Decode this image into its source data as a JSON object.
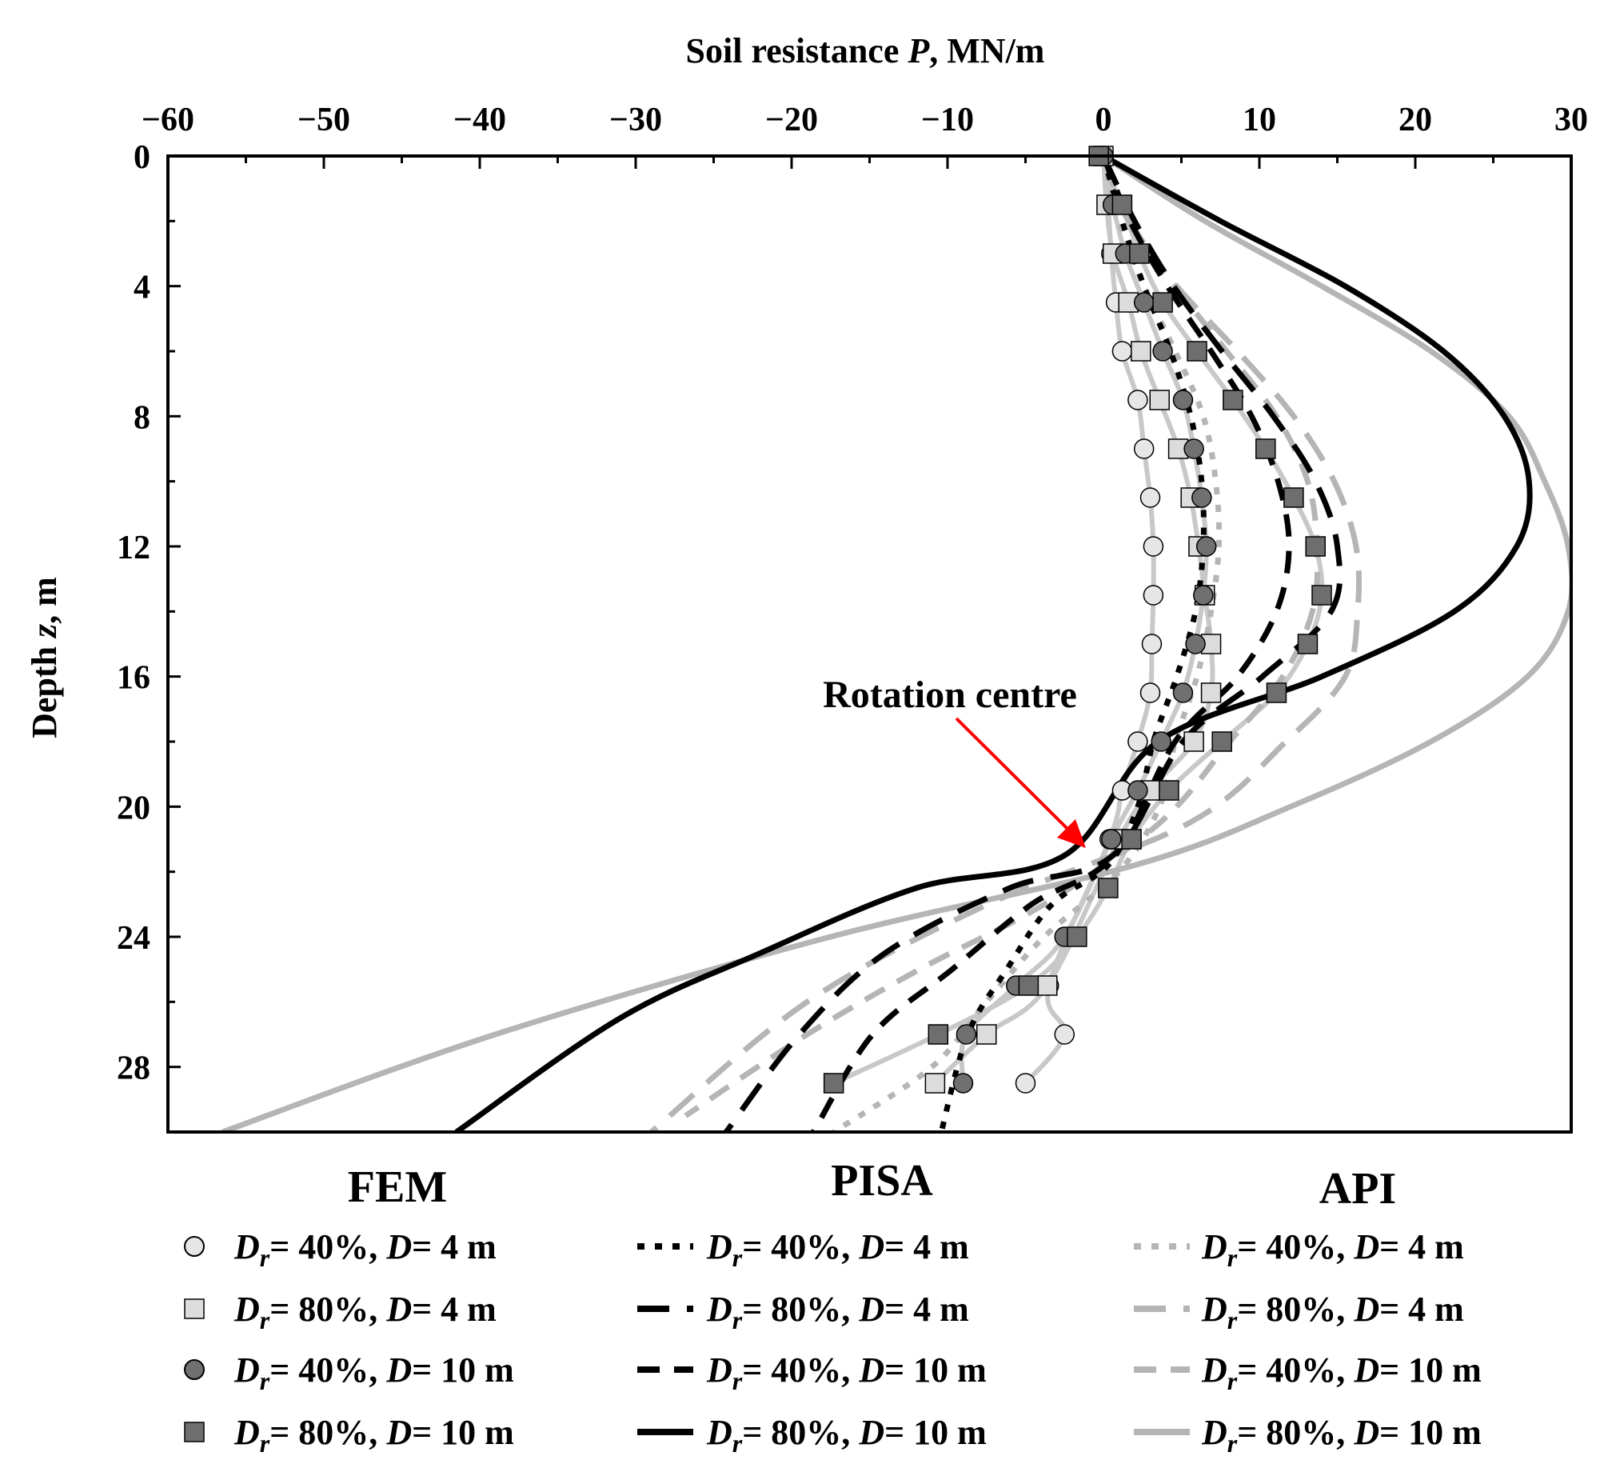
{
  "chart_data": {
    "type": "line",
    "title": "Soil resistance P, MN/m",
    "xlabel": "Soil resistance P, MN/m",
    "xlabel_parts": {
      "pre": "Soil resistance ",
      "var": "P",
      "post": ", MN/m"
    },
    "ylabel": "Depth z, m",
    "ylabel_parts": {
      "pre": "Depth ",
      "var": "z",
      "post": ", m"
    },
    "xlim": [
      -60,
      30
    ],
    "ylim": [
      0,
      30
    ],
    "y_inverted": true,
    "x_axis_position": "top",
    "xticks": [
      -60,
      -50,
      -40,
      -30,
      -20,
      -10,
      0,
      10,
      20,
      30
    ],
    "xtick_labels": [
      "−60",
      "−50",
      "−40",
      "−30",
      "−20",
      "−10",
      "0",
      "10",
      "20",
      "30"
    ],
    "yticks": [
      0,
      4,
      8,
      12,
      16,
      20,
      24,
      28
    ],
    "ytick_labels": [
      "0",
      "4",
      "8",
      "12",
      "16",
      "20",
      "24",
      "28"
    ],
    "annotation": {
      "text": "Rotation centre",
      "points_to": {
        "x": -1,
        "z": 21.2
      }
    },
    "groups": [
      "FEM",
      "PISA",
      "API"
    ],
    "fem_series": [
      {
        "name": "FEM Dr=40%, D=4 m",
        "marker": "circle",
        "fill": "#e6e6e6",
        "x": [
          0,
          0.3,
          0.5,
          0.8,
          1.2,
          2.2,
          2.6,
          3.0,
          3.2,
          3.2,
          3.1,
          3.0,
          2.2,
          1.2,
          0.4,
          -3.5,
          -2.5,
          -5.0
        ],
        "z": [
          0,
          1.5,
          3.0,
          4.5,
          6.0,
          7.5,
          9.0,
          10.5,
          12.0,
          13.5,
          15.0,
          16.5,
          18.0,
          19.5,
          21.0,
          25.5,
          27.0,
          28.5
        ]
      },
      {
        "name": "FEM Dr=80%, D=4 m",
        "marker": "square",
        "fill": "#dcdcdc",
        "x": [
          0,
          0.2,
          0.6,
          1.6,
          2.4,
          3.6,
          4.8,
          5.6,
          6.1,
          6.5,
          6.9,
          6.9,
          5.8,
          3.0,
          1.0,
          -3.6,
          -7.5,
          -10.8
        ],
        "z": [
          0,
          1.5,
          3.0,
          4.5,
          6.0,
          7.5,
          9.0,
          10.5,
          12.0,
          13.5,
          15.0,
          16.5,
          18.0,
          19.5,
          21.0,
          25.5,
          27.0,
          28.5
        ]
      },
      {
        "name": "FEM Dr=40%, D=10 m",
        "marker": "circle",
        "fill": "#707070",
        "x": [
          0,
          0.6,
          1.4,
          2.6,
          3.8,
          5.1,
          5.8,
          6.3,
          6.6,
          6.4,
          5.9,
          5.1,
          3.7,
          2.2,
          0.5,
          -2.5,
          -5.6,
          -8.8,
          -9.0
        ],
        "z": [
          0,
          1.5,
          3.0,
          4.5,
          6.0,
          7.5,
          9.0,
          10.5,
          12.0,
          13.5,
          15.0,
          16.5,
          18.0,
          19.5,
          21.0,
          24.0,
          25.5,
          27.0,
          28.5
        ]
      },
      {
        "name": "FEM Dr=80%, D=10 m",
        "marker": "square",
        "fill": "#6e6e6e",
        "x": [
          -0.3,
          1.2,
          2.3,
          3.8,
          6.0,
          8.3,
          10.4,
          12.2,
          13.6,
          14.0,
          13.1,
          11.1,
          7.6,
          4.2,
          1.8,
          0.3,
          -1.7,
          -4.8,
          -10.6,
          -17.3
        ],
        "z": [
          0,
          1.5,
          3.0,
          4.5,
          6.0,
          7.5,
          9.0,
          10.5,
          12.0,
          13.5,
          15.0,
          16.5,
          18.0,
          19.5,
          21.0,
          22.5,
          24.0,
          25.5,
          27.0,
          28.5
        ]
      }
    ],
    "pisa_series": [
      {
        "name": "PISA Dr=40%, D=4 m",
        "color": "#000000",
        "dash": "9 13",
        "x": [
          0,
          1.2,
          2.6,
          4.3,
          5.6,
          6.3,
          6.4,
          5.9,
          4.7,
          3.2,
          2.2,
          0.3,
          -3.3,
          -6.2,
          -8.7,
          -10.4
        ],
        "z": [
          0,
          2,
          4,
          6,
          8,
          10,
          12,
          14,
          16,
          18,
          20,
          21.8,
          23,
          25,
          27,
          30
        ]
      },
      {
        "name": "PISA Dr=80%, D=4 m",
        "color": "#000000",
        "dash": "40 22",
        "x": [
          0,
          2.0,
          4.5,
          7.6,
          10.9,
          13.6,
          15.0,
          14.6,
          10.2,
          5.1,
          0.6,
          -6.0,
          -14.0,
          -19.5,
          -24.2
        ],
        "z": [
          0,
          2,
          4,
          6,
          8,
          10,
          12,
          14,
          16,
          18,
          21.5,
          22.5,
          24.5,
          27,
          30
        ]
      },
      {
        "name": "PISA Dr=40%, D=10 m",
        "color": "#000000",
        "dash": "28 18",
        "x": [
          0,
          1.7,
          4.1,
          6.9,
          9.5,
          11.2,
          11.9,
          11.1,
          8.6,
          4.6,
          0.7,
          -4.6,
          -9.7,
          -14.8,
          -18.6
        ],
        "z": [
          0,
          2,
          4,
          6,
          8,
          10,
          12,
          14,
          16,
          18,
          21.5,
          23,
          25,
          27,
          30
        ]
      },
      {
        "name": "PISA Dr=80%, D=10 m",
        "color": "#000000",
        "dash": "",
        "x": [
          0,
          7.5,
          15.5,
          21.8,
          25.7,
          27.3,
          26.5,
          22.5,
          14.0,
          3.5,
          -2.5,
          -12.0,
          -22.0,
          -31.0,
          -41.5
        ],
        "z": [
          0,
          2,
          4,
          6,
          8,
          10,
          12,
          14,
          16,
          18,
          21.5,
          22.5,
          24.5,
          26.5,
          30
        ]
      }
    ],
    "api_series": [
      {
        "name": "API Dr=40%, D=4 m",
        "color": "#b5b5b5",
        "dash": "9 13",
        "x": [
          0,
          1.0,
          2.6,
          4.6,
          6.4,
          7.2,
          7.4,
          6.9,
          6.0,
          4.6,
          3.6,
          1.0,
          -3.8,
          -7.5,
          -11.0,
          -17.3
        ],
        "z": [
          0,
          2,
          4,
          6,
          8,
          10,
          12,
          14,
          16,
          18,
          20,
          22,
          24,
          26,
          28,
          30
        ]
      },
      {
        "name": "API Dr=80%, D=4 m",
        "color": "#b5b5b5",
        "dash": "40 22",
        "x": [
          0,
          1.6,
          4.7,
          8.6,
          12.2,
          14.8,
          16.2,
          16.3,
          15.5,
          11.7,
          5.5,
          -7.4,
          -19.0,
          -29.0
        ],
        "z": [
          0,
          2,
          4,
          6,
          8,
          10,
          12,
          14,
          16,
          18,
          20.5,
          23,
          26,
          30
        ]
      },
      {
        "name": "API Dr=40%, D=10 m",
        "color": "#b5b5b5",
        "dash": "28 18",
        "x": [
          0,
          1.7,
          4.6,
          7.9,
          11.1,
          13.1,
          13.7,
          13.4,
          11.5,
          8.1,
          3.6,
          -3.8,
          -11.8,
          -19.0,
          -26.8
        ],
        "z": [
          0,
          2,
          4,
          6,
          8,
          10,
          12,
          14,
          16,
          18,
          20.5,
          23,
          25,
          27,
          29.5
        ]
      },
      {
        "name": "API Dr=80%, D=10 m",
        "color": "#b5b5b5",
        "dash": "",
        "x": [
          0,
          6.5,
          14.0,
          21.0,
          26.0,
          28.3,
          29.8,
          29.8,
          27.2,
          21.0,
          12.0,
          2.0,
          -17.5,
          -39.0,
          -56.5
        ],
        "z": [
          0,
          2,
          4,
          6,
          8,
          10,
          12,
          14,
          16,
          18,
          20,
          21.8,
          24,
          27,
          30
        ]
      }
    ],
    "legend": {
      "fem": [
        {
          "dr": "= 40%, ",
          "d": "= 4 m"
        },
        {
          "dr": "= 80%, ",
          "d": "= 4 m"
        },
        {
          "dr": "= 40%, ",
          "d": "= 10 m"
        },
        {
          "dr": "= 80%, ",
          "d": "= 10 m"
        }
      ],
      "pisa": [
        {
          "dr": "= 40%, ",
          "d": "= 4 m"
        },
        {
          "dr": "= 80%, ",
          "d": "= 4 m"
        },
        {
          "dr": "= 40%, ",
          "d": "= 10 m"
        },
        {
          "dr": "= 80%, ",
          "d": "= 10 m"
        }
      ],
      "api": [
        {
          "dr": "= 40%, ",
          "d": "= 4 m"
        },
        {
          "dr": "= 80%, ",
          "d": "= 4 m"
        },
        {
          "dr": "= 40%, ",
          "d": "= 10 m"
        },
        {
          "dr": "= 80%, ",
          "d": "= 10 m"
        }
      ],
      "var_d": "D",
      "var_r": "r"
    },
    "colors": {
      "axis": "#000000",
      "arrow": "#ff0000",
      "pisa": "#000000",
      "api": "#b5b5b5",
      "fem_line": "#c8c8c8"
    }
  }
}
